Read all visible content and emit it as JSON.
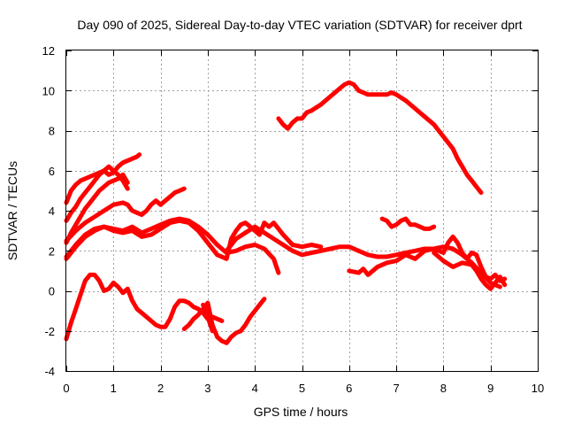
{
  "chart_data": {
    "type": "scatter",
    "title": "Day 090 of 2025, Sidereal Day-to-day VTEC variation (SDTVAR) for receiver dprt",
    "xlabel": "GPS time / hours",
    "ylabel": "SDTVAR / TECUs",
    "xlim": [
      0,
      10
    ],
    "ylim": [
      -4,
      12
    ],
    "xticks": [
      0,
      1,
      2,
      3,
      4,
      5,
      6,
      7,
      8,
      9,
      10
    ],
    "yticks": [
      -4,
      -2,
      0,
      2,
      4,
      6,
      8,
      10,
      12
    ],
    "xtick_labels": [
      "0",
      "1",
      "2",
      "3",
      "4",
      "5",
      "6",
      "7",
      "8",
      "9",
      "10"
    ],
    "ytick_labels": [
      "-4",
      "-2",
      "0",
      "2",
      "4",
      "6",
      "8",
      "10",
      "12"
    ],
    "grid": true,
    "marker_color": "#ff0000",
    "series": [
      {
        "name": "s1",
        "x": [
          0.0,
          0.1,
          0.2,
          0.3,
          0.4,
          0.5,
          0.6,
          0.7,
          0.8,
          0.9,
          1.0,
          1.1,
          1.2,
          1.3,
          1.4,
          1.5,
          1.55
        ],
        "y": [
          4.4,
          5.0,
          5.3,
          5.5,
          5.6,
          5.7,
          5.8,
          5.9,
          6.0,
          5.8,
          5.9,
          6.2,
          6.4,
          6.5,
          6.6,
          6.7,
          6.8
        ]
      },
      {
        "name": "s2",
        "x": [
          0.0,
          0.1,
          0.2,
          0.3,
          0.4,
          0.5,
          0.6,
          0.7,
          0.8,
          0.9,
          1.0,
          1.1,
          1.2,
          1.3
        ],
        "y": [
          3.5,
          3.9,
          4.2,
          4.6,
          4.9,
          5.2,
          5.5,
          5.8,
          6.0,
          6.2,
          6.0,
          5.8,
          5.5,
          5.1
        ]
      },
      {
        "name": "s3",
        "x": [
          0.0,
          0.1,
          0.2,
          0.3,
          0.4,
          0.5,
          0.6,
          0.7,
          0.8,
          0.9,
          1.0,
          1.1,
          1.2,
          1.3
        ],
        "y": [
          2.4,
          2.9,
          3.3,
          3.7,
          4.1,
          4.4,
          4.7,
          5.0,
          5.2,
          5.4,
          5.5,
          5.6,
          5.8,
          5.4
        ]
      },
      {
        "name": "s4",
        "x": [
          0.0,
          0.2,
          0.4,
          0.6,
          0.8,
          1.0,
          1.2,
          1.3,
          1.4,
          1.5,
          1.6,
          1.7,
          1.8,
          1.9,
          2.0,
          2.1,
          2.2,
          2.3,
          2.4,
          2.5
        ],
        "y": [
          2.5,
          3.0,
          3.4,
          3.7,
          4.0,
          4.3,
          4.4,
          4.3,
          4.0,
          3.9,
          3.8,
          4.0,
          4.3,
          4.5,
          4.3,
          4.5,
          4.7,
          4.9,
          5.0,
          5.1
        ]
      },
      {
        "name": "s5",
        "x": [
          0.0,
          0.2,
          0.4,
          0.6,
          0.8,
          1.0,
          1.2,
          1.4,
          1.6,
          1.8,
          2.0,
          2.2,
          2.4,
          2.6,
          2.8,
          3.0,
          3.2,
          3.4,
          3.6,
          3.8,
          4.0,
          4.2,
          4.4,
          4.5
        ],
        "y": [
          1.6,
          2.2,
          2.7,
          3.0,
          3.2,
          3.1,
          3.0,
          3.2,
          2.9,
          3.1,
          3.3,
          3.5,
          3.6,
          3.5,
          3.2,
          2.8,
          2.3,
          1.9,
          2.0,
          2.2,
          2.3,
          2.1,
          1.6,
          0.9
        ]
      },
      {
        "name": "s6",
        "x": [
          0.0,
          0.2,
          0.4,
          0.6,
          0.8,
          1.0,
          1.2,
          1.4,
          1.6,
          1.8,
          2.0,
          2.2,
          2.4,
          2.6,
          2.8,
          3.0,
          3.2,
          3.4,
          3.5,
          3.6,
          3.7,
          3.8,
          3.9,
          4.0,
          4.1,
          4.2,
          4.3,
          4.4,
          4.6,
          4.8,
          5.0,
          5.2,
          5.4
        ],
        "y": [
          1.7,
          2.3,
          2.8,
          3.1,
          3.2,
          3.0,
          2.9,
          3.0,
          2.7,
          2.8,
          3.1,
          3.4,
          3.5,
          3.4,
          3.0,
          2.4,
          1.8,
          1.6,
          2.6,
          3.0,
          3.3,
          3.4,
          3.2,
          3.0,
          2.8,
          3.4,
          3.2,
          3.4,
          2.8,
          2.3,
          2.2,
          2.3,
          2.2
        ]
      },
      {
        "name": "s7",
        "x": [
          3.4,
          3.6,
          3.8,
          4.0,
          4.2,
          4.4,
          4.6,
          4.8,
          5.0,
          5.2,
          5.4,
          5.6,
          5.8,
          6.0,
          6.2,
          6.4,
          6.6,
          6.8,
          7.0,
          7.2,
          7.4,
          7.6,
          7.8,
          8.0,
          8.2,
          8.4,
          8.6,
          8.8,
          9.0,
          9.2
        ],
        "y": [
          2.0,
          2.6,
          2.9,
          3.2,
          2.9,
          2.6,
          2.3,
          2.0,
          1.8,
          1.9,
          2.0,
          2.1,
          2.2,
          2.2,
          2.0,
          1.8,
          1.7,
          1.7,
          1.8,
          1.9,
          2.0,
          2.1,
          2.1,
          2.2,
          2.1,
          1.8,
          1.4,
          0.9,
          0.4,
          0.2
        ]
      },
      {
        "name": "s8",
        "x": [
          4.5,
          4.6,
          4.7,
          4.8,
          4.9,
          5.0,
          5.1,
          5.2,
          5.4,
          5.6,
          5.8,
          5.9,
          6.0,
          6.1,
          6.2,
          6.4,
          6.6,
          6.8,
          6.9,
          7.0,
          7.2,
          7.4,
          7.6,
          7.8,
          8.0,
          8.2,
          8.3,
          8.4,
          8.5,
          8.6,
          8.7,
          8.8
        ],
        "y": [
          8.6,
          8.3,
          8.1,
          8.4,
          8.6,
          8.6,
          8.9,
          9.0,
          9.3,
          9.7,
          10.1,
          10.3,
          10.4,
          10.3,
          10.0,
          9.8,
          9.8,
          9.8,
          9.9,
          9.8,
          9.5,
          9.1,
          8.7,
          8.3,
          7.7,
          7.1,
          6.6,
          6.2,
          5.8,
          5.5,
          5.2,
          4.9
        ]
      },
      {
        "name": "s9",
        "x": [
          6.7,
          6.8,
          6.9,
          7.0,
          7.1,
          7.2,
          7.3,
          7.4,
          7.5,
          7.6,
          7.7,
          7.8
        ],
        "y": [
          3.6,
          3.5,
          3.2,
          3.3,
          3.5,
          3.6,
          3.3,
          3.3,
          3.2,
          3.1,
          3.1,
          3.2
        ]
      },
      {
        "name": "s10",
        "x": [
          6.0,
          6.2,
          6.3,
          6.4,
          6.6,
          6.8,
          7.0,
          7.2,
          7.4,
          7.6,
          7.8,
          8.0,
          8.1,
          8.2,
          8.3,
          8.4,
          8.5,
          8.6,
          8.7,
          8.8,
          8.9,
          9.0,
          9.1,
          9.2,
          9.3
        ],
        "y": [
          1.0,
          0.9,
          1.1,
          0.8,
          1.2,
          1.4,
          1.5,
          1.8,
          1.6,
          2.0,
          2.1,
          1.9,
          2.4,
          2.7,
          2.4,
          1.9,
          1.6,
          1.9,
          1.8,
          1.2,
          0.7,
          0.6,
          0.8,
          0.5,
          0.6
        ]
      },
      {
        "name": "s11",
        "x": [
          7.8,
          8.0,
          8.2,
          8.4,
          8.6,
          8.7,
          8.8,
          8.9,
          9.0,
          9.1,
          9.2,
          9.3
        ],
        "y": [
          1.9,
          1.5,
          1.2,
          1.4,
          1.3,
          1.0,
          0.6,
          0.3,
          0.1,
          0.4,
          0.7,
          0.3
        ]
      },
      {
        "name": "s12",
        "x": [
          0.0,
          0.1,
          0.2,
          0.3,
          0.4,
          0.5,
          0.6,
          0.7,
          0.8,
          0.9,
          1.0,
          1.1,
          1.2,
          1.3,
          1.4,
          1.5,
          1.6,
          1.7,
          1.8,
          1.9,
          2.0,
          2.1,
          2.2,
          2.3,
          2.4,
          2.5,
          2.6,
          2.7,
          2.8,
          2.9,
          3.0,
          3.1,
          3.2,
          3.3
        ],
        "y": [
          -2.4,
          -1.6,
          -0.9,
          -0.2,
          0.5,
          0.8,
          0.8,
          0.5,
          0.0,
          0.1,
          0.4,
          0.2,
          -0.1,
          0.1,
          -0.5,
          -0.9,
          -1.1,
          -1.3,
          -1.5,
          -1.7,
          -1.8,
          -1.8,
          -1.4,
          -0.8,
          -0.5,
          -0.5,
          -0.6,
          -0.8,
          -0.9,
          -1.1,
          -1.4,
          -1.3,
          -1.4,
          -1.5
        ]
      },
      {
        "name": "s13",
        "x": [
          2.5,
          2.6,
          2.7,
          2.8,
          2.9,
          3.0,
          3.1,
          3.2,
          3.3,
          3.4,
          3.5,
          3.6,
          3.7,
          3.8,
          3.9,
          4.0,
          4.1,
          4.2
        ],
        "y": [
          -1.9,
          -1.7,
          -1.4,
          -1.2,
          -0.9,
          -0.6,
          -1.7,
          -2.3,
          -2.5,
          -2.6,
          -2.3,
          -2.1,
          -2.0,
          -1.7,
          -1.3,
          -1.0,
          -0.7,
          -0.4
        ]
      },
      {
        "name": "s14",
        "x": [
          2.9,
          3.0,
          3.1
        ],
        "y": [
          -0.7,
          -1.3,
          -2.0
        ]
      }
    ]
  }
}
